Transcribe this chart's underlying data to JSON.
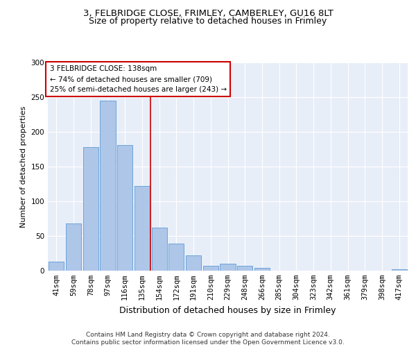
{
  "title1": "3, FELBRIDGE CLOSE, FRIMLEY, CAMBERLEY, GU16 8LT",
  "title2": "Size of property relative to detached houses in Frimley",
  "xlabel": "Distribution of detached houses by size in Frimley",
  "ylabel": "Number of detached properties",
  "categories": [
    "41sqm",
    "59sqm",
    "78sqm",
    "97sqm",
    "116sqm",
    "135sqm",
    "154sqm",
    "172sqm",
    "191sqm",
    "210sqm",
    "229sqm",
    "248sqm",
    "266sqm",
    "285sqm",
    "304sqm",
    "323sqm",
    "342sqm",
    "361sqm",
    "379sqm",
    "398sqm",
    "417sqm"
  ],
  "values": [
    13,
    68,
    178,
    245,
    181,
    122,
    62,
    39,
    22,
    7,
    10,
    7,
    4,
    0,
    0,
    0,
    0,
    0,
    0,
    0,
    2
  ],
  "bar_color": "#aec6e8",
  "bar_edge_color": "#5b9bd5",
  "vline_x": 5.5,
  "vline_color": "#cc0000",
  "annotation_text": "3 FELBRIDGE CLOSE: 138sqm\n← 74% of detached houses are smaller (709)\n25% of semi-detached houses are larger (243) →",
  "annotation_box_color": "#ffffff",
  "annotation_box_edge_color": "#cc0000",
  "ylim": [
    0,
    300
  ],
  "yticks": [
    0,
    50,
    100,
    150,
    200,
    250,
    300
  ],
  "background_color": "#e8eef8",
  "footer": "Contains HM Land Registry data © Crown copyright and database right 2024.\nContains public sector information licensed under the Open Government Licence v3.0.",
  "title_fontsize": 9.5,
  "subtitle_fontsize": 9,
  "xlabel_fontsize": 9,
  "ylabel_fontsize": 8,
  "tick_fontsize": 7.5,
  "annotation_fontsize": 7.5,
  "footer_fontsize": 6.5
}
